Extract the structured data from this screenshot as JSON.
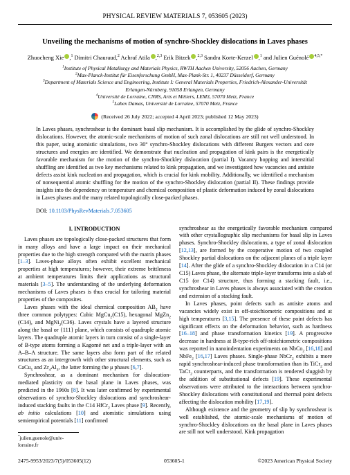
{
  "journal_header": "PHYSICAL REVIEW MATERIALS 7, 053605 (2023)",
  "title": "Unveiling the mechanisms of motion of synchro-Shockley dislocations in Laves phases",
  "authors": {
    "a1_name": "Zhuocheng Xie",
    "a1_sup": "1",
    "a2_name": "Dimitri Chauraud,",
    "a2_sup": "2",
    "a3_name": "Achraf Atila",
    "a3_sup": "2,3",
    "a4_name": "Erik Bitzek",
    "a4_sup": "2,3",
    "a5_name": "Sandra Korte-Kerzel",
    "a5_sup": "1",
    "a6_name": "and Julien Guénolé",
    "a6_sup": "4,5,*"
  },
  "affils": {
    "l1": "Institute of Physical Metallurgy and Materials Physics, RWTH Aachen University, 52056 Aachen, Germany",
    "l2": "Max-Planck-Institut für Eisenforschung GmbH, Max-Plank-Str. 1, 40237 Düsseldorf, Germany",
    "l3": "Department of Materials Science and Engineering, Institute I: General Materials Properties, Friedrich-Alexander-Universität",
    "l3b": "Erlangen-Nürnberg, 91058 Erlangen, Germany",
    "l4": "Université de Lorraine, CNRS, Arts et Métiers, LEM3, 57070 Metz, France",
    "l5": "Labex Damas, Université de Lorraine, 57070 Metz, France"
  },
  "dates": "(Received 26 July 2022; accepted 4 April 2023; published 12 May 2023)",
  "abstract": "In Laves phases, synchroshear is the dominant basal slip mechanism. It is accomplished by the glide of synchro-Shockley dislocations. However, the atomic-scale mechanisms of motion of such zonal dislocations are still not well understood. In this paper, using atomistic simulations, two 30° synchro-Shockley dislocations with different Burgers vectors and core structures and energies are identified. We demonstrate that nucleation and propagation of kink pairs is the energetically favorable mechanism for the motion of the synchro-Shockley dislocation (partial I). Vacancy hopping and interstitial shuffling are identified as two key mechanisms related to kink propagation, and we investigated how vacancies and antisite defects assist kink nucleation and propagation, which is crucial for kink mobility. Additionally, we identified a mechanism of nonsequential atomic shuffling for the motion of the synchro-Shockley dislocation (partial II). These findings provide insights into the dependency on temperature and chemical composition of plastic deformation induced by zonal dislocations in Laves phases and the many related topologically close-packed phases.",
  "doi_label": "DOI:",
  "doi_link": "10.1103/PhysRevMaterials.7.053605",
  "section1": "I. INTRODUCTION",
  "col1": {
    "p1a": "Laves phases are topologically close-packed structures that form in many alloys and have a large impact on their mechanical properties due to the high strength compared with the matrix phases [",
    "p1r1": "1–3",
    "p1b": "]. Laves-phase alloys often exhibit excellent mechanical properties at high temperatures; however, their extreme brittleness at ambient temperatures limits their applications as structural materials [",
    "p1r2": "3–5",
    "p1c": "]. The understanding of the underlying deformation mechanisms of Laves phases is thus crucial for tailoring material properties of the composites.",
    "p2a": "Laves phases with the ideal chemical composition AB",
    "p2b": " have three common polytypes: Cubic MgCu",
    "p2c": "(C15), hexagonal MgZn",
    "p2d": " (C14), and MgNi",
    "p2e": "(C36). Laves crystals have a layered structure along the basal or {111} plane, which consists of quadruple atomic layers. The quadruple atomic layers in turn consist of a single-layer of B-type atoms forming a Kagomé net and a triple-layer with an A–B–A structure. The same layers also form part of the related structures as an intergrowth with other structural elements, such as CaCu",
    "p2f": " and Zr",
    "p2g": "Al",
    "p2h": ", the latter forming the μ phases [",
    "p2r1": "6",
    "p2i": ",",
    "p2r2": "7",
    "p2j": "].",
    "p3a": "Synchroshear, as a dominant mechanism for dislocation-mediated plasticity on the basal plane in Laves phases, was predicted in the 1960s [",
    "p3r1": "8",
    "p3b": "]. It was later confirmed by experimental observations of synchro-Shockley dislocations and synchroshear-induced stacking faults in the C14 HfCr",
    "p3c": " Laves phase [",
    "p3r2": "9",
    "p3d": "]. Recently, ",
    "p3e": "ab initio",
    "p3f": " calculations [",
    "p3r3": "10",
    "p3g": "] and atomistic simulations using semiempirical potentials [",
    "p3r4": "11",
    "p3h": "] confirmed"
  },
  "col2": {
    "p1a": "synchroshear as the energetically favorable mechanism compared with other crystallographic slip mechanisms for basal slip in Laves phases. Synchro-Shockley dislocations, a type of zonal dislocation [",
    "p1r1": "12",
    "p1b": ",",
    "p1r2": "13",
    "p1c": "], are formed by the cooperative motion of two coupled Shockley partial dislocations on the adjacent planes of a triple layer [",
    "p1r3": "14",
    "p1d": "]. After the glide of a synchro-Shockley dislocation in a C14 (or C15) Laves phase, the alternate triple-layer transforms into a slab of C15 (or C14) structure, thus forming a stacking fault, i.e., synchroshear in Laves phases is always associated with the creation and extension of a stacking fault.",
    "p2a": "In Laves phases, point defects such as antisite atoms and vacancies widely exist in off-stoichiometric compositions and at high temperatures [",
    "p2r1": "3",
    "p2b": ",",
    "p2r2": "15",
    "p2c": "]. The presence of these point defects has significant effects on the deformation behavior, such as hardness [",
    "p2r3": "16–18",
    "p2d": "] and phase transformation kinetics [",
    "p2r4": "19",
    "p2e": "]. A progressive decrease in hardness at B-type-rich off-stoichiometric compositions was reported in nanoindentation experiments on NbCo",
    "p2f": " [",
    "p2r5": "16",
    "p2g": ",",
    "p2r6": "18",
    "p2h": "] and NbFe",
    "p2i": " [",
    "p2r7": "16",
    "p2j": ",",
    "p2r8": "17",
    "p2k": "] Laves phases. Single-phase NbCr",
    "p2l": " exhibits a more rapid synchroshear-induced phase transformation than its TiCr",
    "p2m": " and TaCr",
    "p2n": " counterparts, and the transformation is rendered sluggish by the addition of substitutional defects [",
    "p2r9": "19",
    "p2o": "]. These experimental observations were attributed to the interactions between synchro-Shockley dislocations with constitutional and thermal point defects affecting the dislocation mobility [",
    "p2r10": "17",
    "p2p": ",",
    "p2r11": "19",
    "p2q": "].",
    "p3a": "Although existence and the geometry of slip by synchroshear is well established, the atomic-scale mechanisms of motion of synchro-Shockley dislocations on the basal plane in Laves phases are still not well understood. Kink propagation"
  },
  "footnote": "julien.guenole@univ-lorraine.fr",
  "footer": {
    "left": "2475-9953/2023/7(5)/053605(12)",
    "center": "053605-1",
    "right": "©2023 American Physical Society"
  }
}
